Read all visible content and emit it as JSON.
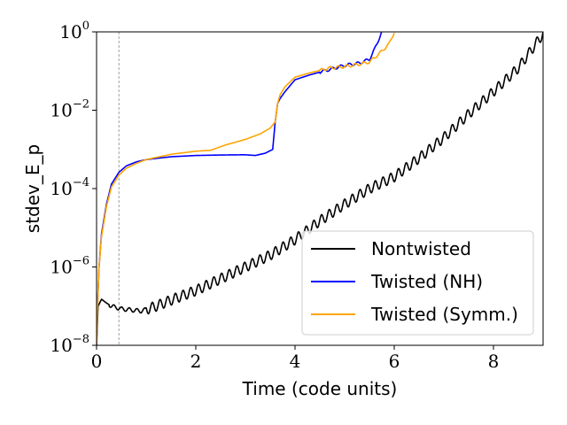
{
  "chart_data": {
    "type": "line",
    "xlabel": "Time (code units)",
    "ylabel": "stdev_E_p",
    "xlim": [
      0,
      9
    ],
    "ylim": [
      1e-08,
      1
    ],
    "yscale": "log",
    "x_ticks": [
      0,
      2,
      4,
      6,
      8
    ],
    "x_tick_labels": [
      "0",
      "2",
      "4",
      "6",
      "8"
    ],
    "y_ticks": [
      -8,
      -6,
      -4,
      -2,
      0
    ],
    "y_tick_labels": [
      {
        "base": "10",
        "exp": "−8"
      },
      {
        "base": "10",
        "exp": "−6"
      },
      {
        "base": "10",
        "exp": "−4"
      },
      {
        "base": "10",
        "exp": "−2"
      },
      {
        "base": "10",
        "exp": "0"
      }
    ],
    "vline_x": 0.45,
    "legend_position": "lower-right",
    "series": [
      {
        "name": "Nontwisted",
        "color": "#000000",
        "oscillating": true,
        "points": [
          [
            0,
            1e-08
          ],
          [
            0.03,
            1e-07
          ],
          [
            0.1,
            1.5e-07
          ],
          [
            0.2,
            1.2e-07
          ],
          [
            0.3,
            1e-07
          ],
          [
            0.5,
            8.5e-08
          ],
          [
            0.7,
            8e-08
          ],
          [
            0.9,
            7.5e-08
          ],
          [
            1.2,
            1e-07
          ],
          [
            1.6,
            1.6e-07
          ],
          [
            2.0,
            2.5e-07
          ],
          [
            2.5,
            5e-07
          ],
          [
            3.0,
            1e-06
          ],
          [
            3.5,
            2e-06
          ],
          [
            4.0,
            5e-06
          ],
          [
            4.5,
            1.5e-05
          ],
          [
            5.0,
            4e-05
          ],
          [
            5.5,
            0.0001
          ],
          [
            6.0,
            0.0002
          ],
          [
            6.5,
            0.0006
          ],
          [
            7.0,
            0.002
          ],
          [
            7.5,
            0.008
          ],
          [
            8.0,
            0.03
          ],
          [
            8.5,
            0.12
          ],
          [
            8.8,
            0.4
          ],
          [
            9.0,
            0.9
          ]
        ]
      },
      {
        "name": "Twisted (NH)",
        "color": "#0000ff",
        "oscillating": false,
        "points": [
          [
            0,
            1e-08
          ],
          [
            0.02,
            1e-07
          ],
          [
            0.05,
            1e-06
          ],
          [
            0.1,
            7e-06
          ],
          [
            0.2,
            4e-05
          ],
          [
            0.3,
            0.00013
          ],
          [
            0.45,
            0.00026
          ],
          [
            0.6,
            0.00038
          ],
          [
            0.8,
            0.00048
          ],
          [
            1.0,
            0.00055
          ],
          [
            1.5,
            0.00065
          ],
          [
            2.0,
            0.0007
          ],
          [
            2.5,
            0.00072
          ],
          [
            3.0,
            0.00073
          ],
          [
            3.2,
            0.0007
          ],
          [
            3.4,
            0.0008
          ],
          [
            3.55,
            0.001
          ],
          [
            3.6,
            0.005
          ],
          [
            3.65,
            0.015
          ],
          [
            3.7,
            0.02
          ],
          [
            3.8,
            0.03
          ],
          [
            4.0,
            0.06
          ],
          [
            4.3,
            0.08
          ],
          [
            4.7,
            0.11
          ],
          [
            5.0,
            0.14
          ],
          [
            5.3,
            0.16
          ],
          [
            5.5,
            0.2
          ],
          [
            5.6,
            0.35
          ],
          [
            5.75,
            1.0
          ]
        ]
      },
      {
        "name": "Twisted (Symm.)",
        "color": "#ffa500",
        "oscillating": false,
        "points": [
          [
            0,
            1e-08
          ],
          [
            0.02,
            1e-07
          ],
          [
            0.05,
            1e-06
          ],
          [
            0.1,
            6e-06
          ],
          [
            0.2,
            3.5e-05
          ],
          [
            0.3,
            0.00011
          ],
          [
            0.45,
            0.00022
          ],
          [
            0.6,
            0.00033
          ],
          [
            0.8,
            0.00044
          ],
          [
            1.0,
            0.00055
          ],
          [
            1.5,
            0.00075
          ],
          [
            2.0,
            0.0009
          ],
          [
            2.3,
            0.00095
          ],
          [
            2.6,
            0.0013
          ],
          [
            3.0,
            0.0018
          ],
          [
            3.3,
            0.0025
          ],
          [
            3.5,
            0.0035
          ],
          [
            3.6,
            0.005
          ],
          [
            3.65,
            0.015
          ],
          [
            3.7,
            0.025
          ],
          [
            3.8,
            0.04
          ],
          [
            4.0,
            0.07
          ],
          [
            4.3,
            0.09
          ],
          [
            4.7,
            0.12
          ],
          [
            5.0,
            0.13
          ],
          [
            5.3,
            0.15
          ],
          [
            5.5,
            0.17
          ],
          [
            5.7,
            0.28
          ],
          [
            5.9,
            0.5
          ],
          [
            6.0,
            1.0
          ]
        ]
      }
    ]
  }
}
